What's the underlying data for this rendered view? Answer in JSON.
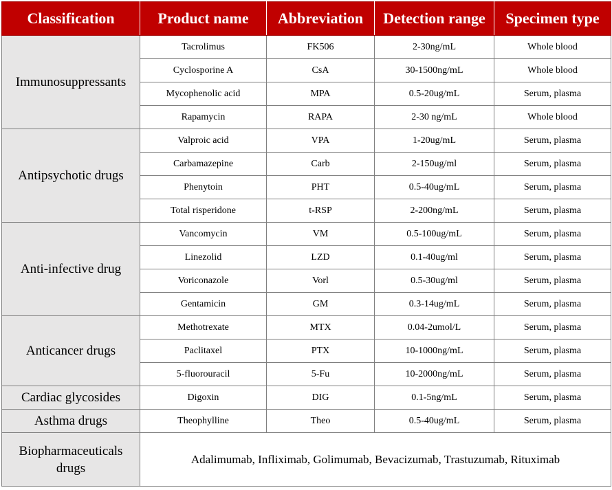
{
  "headers": {
    "classification": "Classification",
    "product_name": "Product name",
    "abbreviation": "Abbreviation",
    "detection_range": "Detection range",
    "specimen_type": "Specimen type"
  },
  "groups": [
    {
      "classification": "Immunosuppressants",
      "rows": [
        {
          "product": "Tacrolimus",
          "abbr": "FK506",
          "range": "2-30ng/mL",
          "specimen": "Whole blood"
        },
        {
          "product": "Cyclosporine A",
          "abbr": "CsA",
          "range": "30-1500ng/mL",
          "specimen": "Whole blood"
        },
        {
          "product": "Mycophenolic acid",
          "abbr": "MPA",
          "range": "0.5-20ug/mL",
          "specimen": "Serum, plasma"
        },
        {
          "product": "Rapamycin",
          "abbr": "RAPA",
          "range": "2-30 ng/mL",
          "specimen": "Whole blood"
        }
      ]
    },
    {
      "classification": "Antipsychotic drugs",
      "rows": [
        {
          "product": "Valproic acid",
          "abbr": "VPA",
          "range": "1-20ug/mL",
          "specimen": "Serum, plasma"
        },
        {
          "product": "Carbamazepine",
          "abbr": "Carb",
          "range": "2-150ug/ml",
          "specimen": "Serum, plasma"
        },
        {
          "product": "Phenytoin",
          "abbr": "PHT",
          "range": "0.5-40ug/mL",
          "specimen": "Serum, plasma"
        },
        {
          "product": "Total risperidone",
          "abbr": "t-RSP",
          "range": "2-200ng/mL",
          "specimen": "Serum, plasma"
        }
      ]
    },
    {
      "classification": "Anti-infective drug",
      "rows": [
        {
          "product": "Vancomycin",
          "abbr": "VM",
          "range": "0.5-100ug/mL",
          "specimen": "Serum, plasma"
        },
        {
          "product": "Linezolid",
          "abbr": "LZD",
          "range": "0.1-40ug/ml",
          "specimen": "Serum, plasma"
        },
        {
          "product": "Voriconazole",
          "abbr": "Vorl",
          "range": "0.5-30ug/ml",
          "specimen": "Serum, plasma"
        },
        {
          "product": "Gentamicin",
          "abbr": "GM",
          "range": "0.3-14ug/mL",
          "specimen": "Serum, plasma"
        }
      ]
    },
    {
      "classification": "Anticancer drugs",
      "rows": [
        {
          "product": "Methotrexate",
          "abbr": "MTX",
          "range": "0.04-2umol/L",
          "specimen": "Serum, plasma"
        },
        {
          "product": "Paclitaxel",
          "abbr": "PTX",
          "range": "10-1000ng/mL",
          "specimen": "Serum, plasma"
        },
        {
          "product": "5-fluorouracil",
          "abbr": "5-Fu",
          "range": "10-2000ng/mL",
          "specimen": "Serum, plasma"
        }
      ]
    },
    {
      "classification": "Cardiac glycosides",
      "rows": [
        {
          "product": "Digoxin",
          "abbr": "DIG",
          "range": "0.1-5ng/mL",
          "specimen": "Serum, plasma"
        }
      ]
    },
    {
      "classification": "Asthma drugs",
      "rows": [
        {
          "product": "Theophylline",
          "abbr": "Theo",
          "range": "0.5-40ug/mL",
          "specimen": "Serum, plasma"
        }
      ]
    }
  ],
  "biopharma": {
    "classification": "Biopharmaceuticals drugs",
    "products": "Adalimumab, Infliximab, Golimumab, Bevacizumab, Trastuzumab, Rituximab"
  },
  "colors": {
    "header_bg": "#c00000",
    "header_text": "#ffffff",
    "classification_bg": "#e7e6e6",
    "border": "#7f7f7f"
  }
}
